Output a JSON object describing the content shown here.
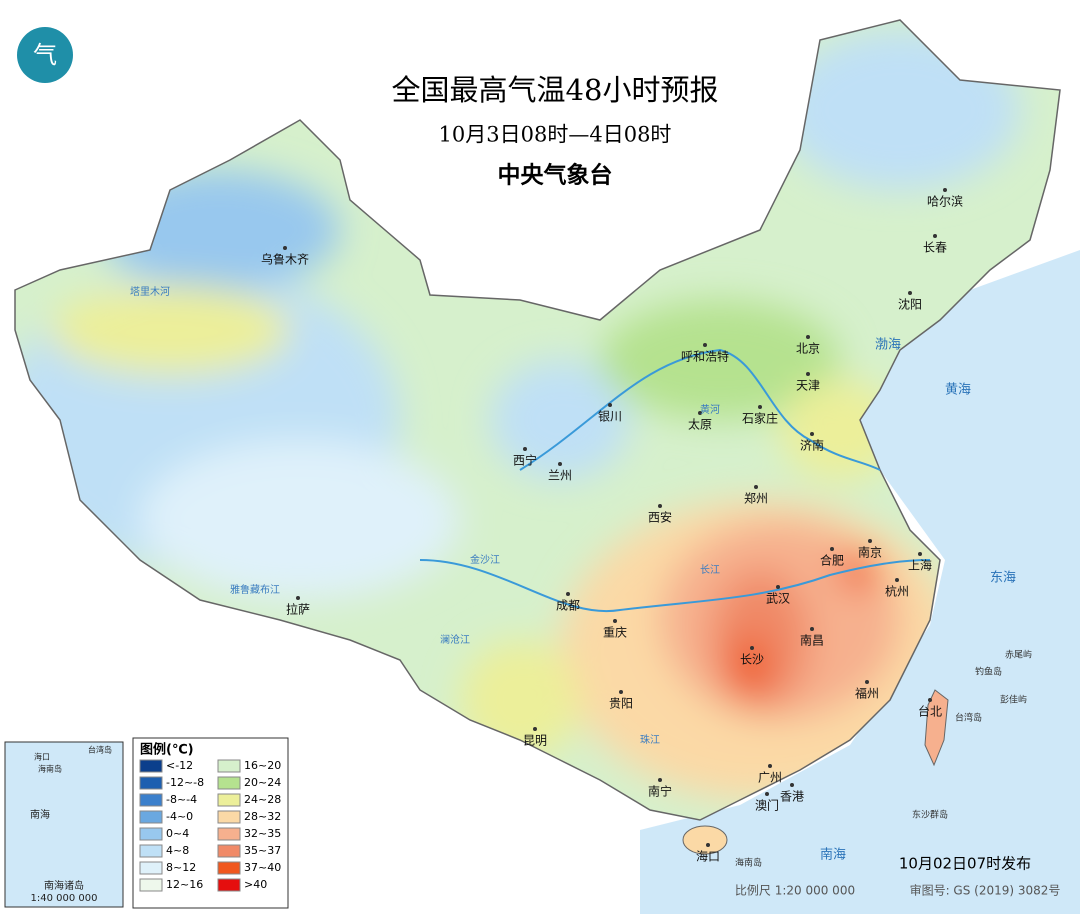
{
  "header": {
    "title": "全国最高气温48小时预报",
    "subtitle": "10月3日08时—4日08时",
    "agency": "中央气象台"
  },
  "cities": [
    "乌鲁木齐",
    "哈尔滨",
    "长春",
    "沈阳",
    "呼和浩特",
    "北京",
    "天津",
    "石家庄",
    "太原",
    "银川",
    "西宁",
    "兰州",
    "济南",
    "郑州",
    "西安",
    "合肥",
    "南京",
    "上海",
    "杭州",
    "武汉",
    "成都",
    "重庆",
    "长沙",
    "南昌",
    "贵阳",
    "昆明",
    "福州",
    "台北",
    "广州",
    "香港",
    "澳门",
    "南宁",
    "海口",
    "拉萨"
  ],
  "seas": [
    "渤海",
    "黄海",
    "东海",
    "南海"
  ],
  "rivers": [
    "塔里木河",
    "黄河",
    "长江",
    "雅鲁藏布江",
    "澜沧江",
    "金沙江",
    "珠江"
  ],
  "islands": [
    "钓鱼岛",
    "赤尾屿",
    "彭佳屿",
    "台湾岛",
    "东沙群岛",
    "海南岛"
  ],
  "legend": {
    "title": "图例(℃)",
    "items": [
      {
        "label": "<-12",
        "color": "#0b3f8c"
      },
      {
        "label": "-12~-8",
        "color": "#1d5fb0"
      },
      {
        "label": "-8~-4",
        "color": "#3b80cc"
      },
      {
        "label": "-4~0",
        "color": "#6aa8e0"
      },
      {
        "label": "0~4",
        "color": "#98c8ee"
      },
      {
        "label": "4~8",
        "color": "#bfe0f6"
      },
      {
        "label": "8~12",
        "color": "#dff1fa"
      },
      {
        "label": "12~16",
        "color": "#eef8ec"
      },
      {
        "label": "16~20",
        "color": "#d6f0cc"
      },
      {
        "label": "20~24",
        "color": "#b5e28f"
      },
      {
        "label": "24~28",
        "color": "#ecef9a"
      },
      {
        "label": "28~32",
        "color": "#fbd9a6"
      },
      {
        "label": "32~35",
        "color": "#f6b08e"
      },
      {
        "label": "35~37",
        "color": "#f08a68"
      },
      {
        "label": "37~40",
        "color": "#f0571e"
      },
      {
        "label": ">40",
        "color": "#e50e0e"
      }
    ]
  },
  "inset": {
    "labels": [
      "南海诸岛",
      "1:40 000 000",
      "南海",
      "海南岛",
      "海口",
      "台湾岛"
    ]
  },
  "footer": {
    "issued": "10月02日07时发布",
    "scale": "比例尺 1:20 000 000",
    "approval": "审图号: GS (2019) 3082号"
  }
}
